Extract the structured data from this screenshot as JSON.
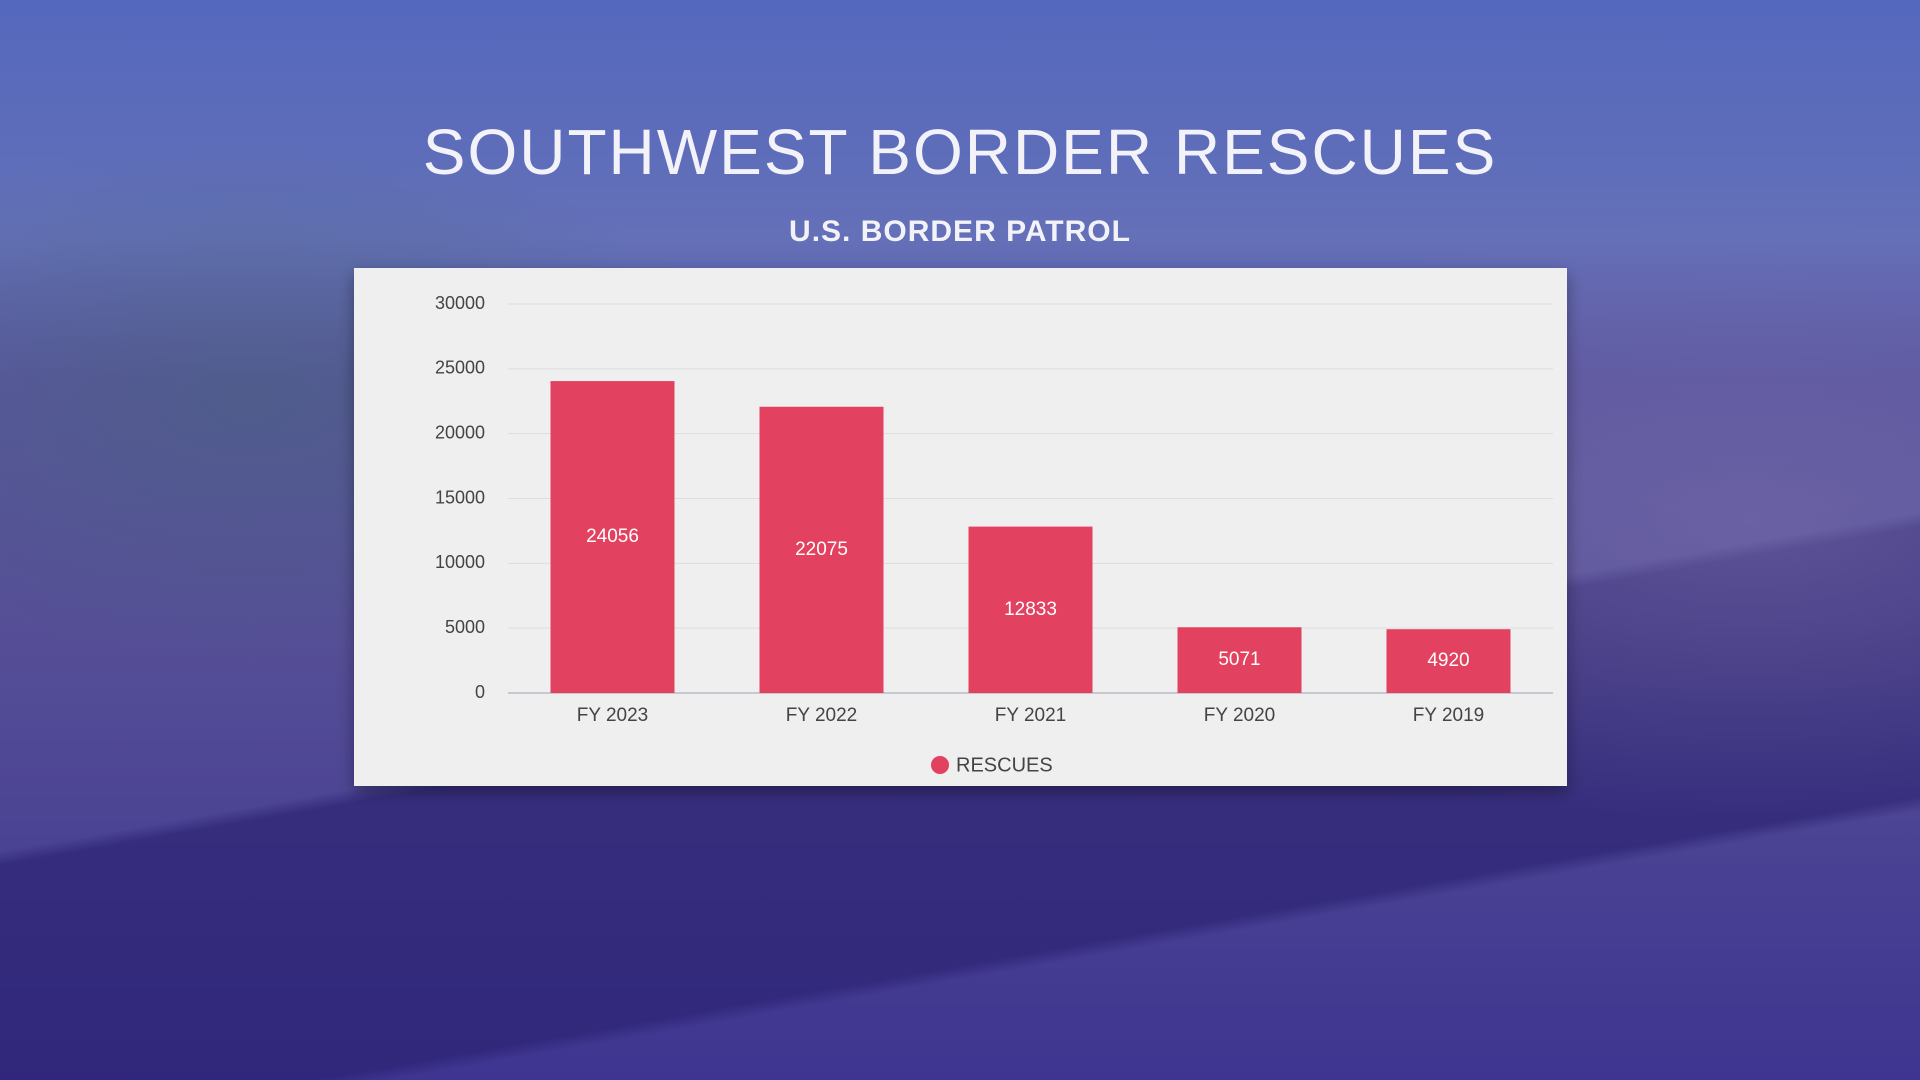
{
  "chart_data": {
    "type": "bar",
    "title": "SOUTHWEST BORDER RESCUES",
    "subtitle": "U.S. BORDER PATROL",
    "categories": [
      "FY 2023",
      "FY 2022",
      "FY 2021",
      "FY 2020",
      "FY 2019"
    ],
    "series": [
      {
        "name": "RESCUES",
        "color": "#e2415f",
        "values": [
          24056,
          22075,
          12833,
          5071,
          4920
        ]
      }
    ],
    "ylim": [
      0,
      30000
    ],
    "yticks": [
      0,
      5000,
      10000,
      15000,
      20000,
      25000,
      30000
    ],
    "grid": true
  }
}
